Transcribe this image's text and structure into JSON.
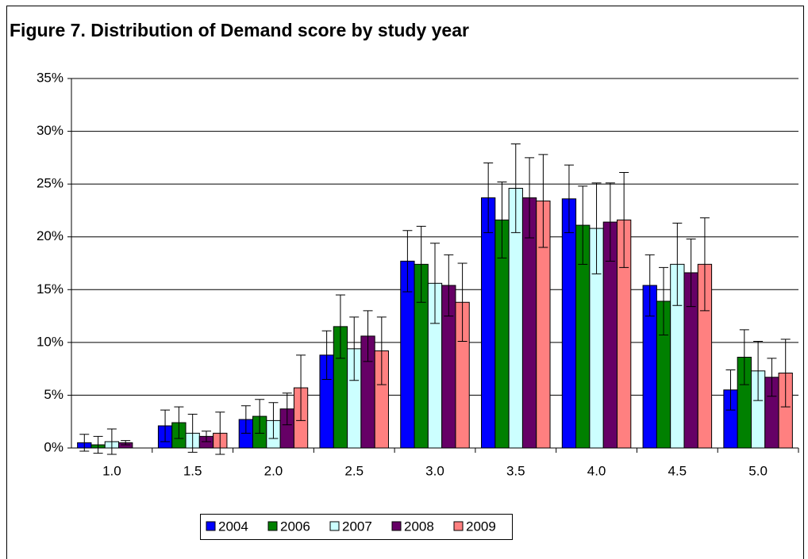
{
  "chart_data": {
    "type": "bar",
    "title": "Figure 7. Distribution of Demand score by study year",
    "categories": [
      "1.0",
      "1.5",
      "2.0",
      "2.5",
      "3.0",
      "3.5",
      "4.0",
      "4.5",
      "5.0"
    ],
    "series": [
      {
        "name": "2004",
        "color": "#0000ff",
        "values": [
          0.5,
          2.1,
          2.7,
          8.8,
          17.7,
          23.7,
          23.6,
          15.4,
          5.5
        ],
        "errors": [
          0.8,
          1.5,
          1.3,
          2.3,
          2.9,
          3.3,
          3.2,
          2.9,
          1.9
        ]
      },
      {
        "name": "2006",
        "color": "#008000",
        "values": [
          0.3,
          2.4,
          3.0,
          11.5,
          17.4,
          21.6,
          21.1,
          13.9,
          8.6
        ],
        "errors": [
          0.8,
          1.5,
          1.6,
          3.0,
          3.6,
          3.6,
          3.7,
          3.2,
          2.6
        ]
      },
      {
        "name": "2007",
        "color": "#ccffff",
        "values": [
          0.6,
          1.4,
          2.6,
          9.4,
          15.6,
          24.6,
          20.8,
          17.4,
          7.3
        ],
        "errors": [
          1.2,
          1.8,
          1.7,
          3.0,
          3.8,
          4.2,
          4.3,
          3.9,
          2.8
        ]
      },
      {
        "name": "2008",
        "color": "#660066",
        "values": [
          0.5,
          1.1,
          3.7,
          10.6,
          15.4,
          23.7,
          21.4,
          16.6,
          6.7
        ],
        "errors": [
          0.2,
          0.5,
          1.5,
          2.4,
          2.9,
          3.8,
          3.7,
          3.2,
          1.8
        ]
      },
      {
        "name": "2009",
        "color": "#ff8080",
        "values": [
          0,
          1.4,
          5.7,
          9.2,
          13.8,
          23.4,
          21.6,
          17.4,
          7.1
        ],
        "errors": [
          0,
          2.0,
          3.1,
          3.2,
          3.7,
          4.4,
          4.5,
          4.4,
          3.2
        ]
      }
    ],
    "ylim": [
      0,
      35
    ],
    "yticks": [
      {
        "value": 0,
        "label": "0%"
      },
      {
        "value": 5,
        "label": "5%"
      },
      {
        "value": 10,
        "label": "10%"
      },
      {
        "value": 15,
        "label": "15%"
      },
      {
        "value": 20,
        "label": "20%"
      },
      {
        "value": 25,
        "label": "25%"
      },
      {
        "value": 30,
        "label": "30%"
      },
      {
        "value": 35,
        "label": "35%"
      }
    ],
    "grid": true,
    "legend": "bottom"
  }
}
